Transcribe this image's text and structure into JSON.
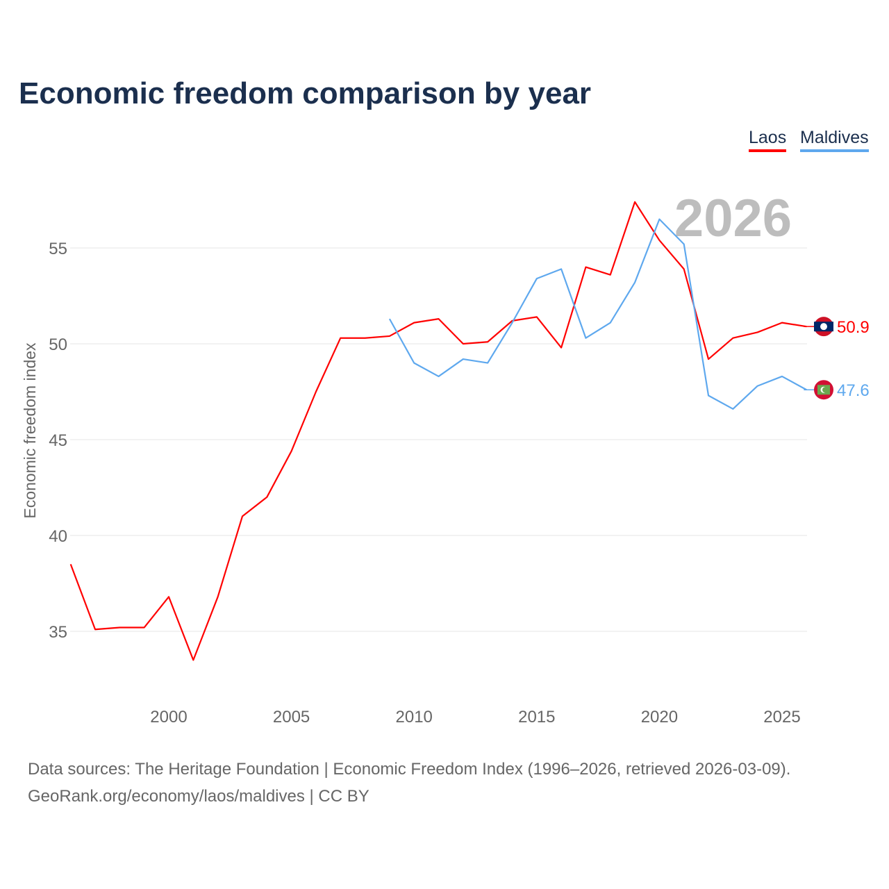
{
  "chart_data": {
    "type": "line",
    "title": "Economic freedom comparison by year",
    "xlabel": "",
    "ylabel": "Economic freedom index",
    "xlim": [
      1996,
      2026
    ],
    "ylim": [
      31.5,
      58
    ],
    "yticks": [
      35,
      40,
      45,
      50,
      55
    ],
    "xticks": [
      2000,
      2005,
      2010,
      2015,
      2020,
      2025
    ],
    "watermark_year": "2026",
    "legend_position": "top-right",
    "series": [
      {
        "name": "Laos",
        "color": "#ff0000",
        "end_label": "50.9",
        "x": [
          1996,
          1997,
          1998,
          1999,
          2000,
          2001,
          2002,
          2003,
          2004,
          2005,
          2006,
          2007,
          2008,
          2009,
          2010,
          2011,
          2012,
          2013,
          2014,
          2015,
          2016,
          2017,
          2018,
          2019,
          2020,
          2021,
          2022,
          2023,
          2024,
          2025,
          2026
        ],
        "values": [
          38.5,
          35.1,
          35.2,
          35.2,
          36.8,
          33.5,
          36.8,
          41.0,
          42.0,
          44.4,
          47.5,
          50.3,
          50.3,
          50.4,
          51.1,
          51.3,
          50.0,
          50.1,
          51.2,
          51.4,
          49.8,
          54.0,
          53.6,
          57.4,
          55.4,
          53.9,
          49.2,
          50.3,
          50.6,
          51.1,
          50.9
        ]
      },
      {
        "name": "Maldives",
        "color": "#5ea8ee",
        "end_label": "47.6",
        "x": [
          2009,
          2010,
          2011,
          2012,
          2013,
          2014,
          2015,
          2016,
          2017,
          2018,
          2019,
          2020,
          2021,
          2022,
          2023,
          2024,
          2025,
          2026
        ],
        "values": [
          51.3,
          49.0,
          48.3,
          49.2,
          49.0,
          51.1,
          53.4,
          53.9,
          50.3,
          51.1,
          53.2,
          56.5,
          55.2,
          47.3,
          46.6,
          47.8,
          48.3,
          47.6
        ]
      }
    ]
  },
  "source": {
    "line1": "Data sources: The Heritage Foundation | Economic Freedom Index (1996–2026, retrieved 2026-03-09).",
    "line2": "GeoRank.org/economy/laos/maldives | CC BY"
  }
}
